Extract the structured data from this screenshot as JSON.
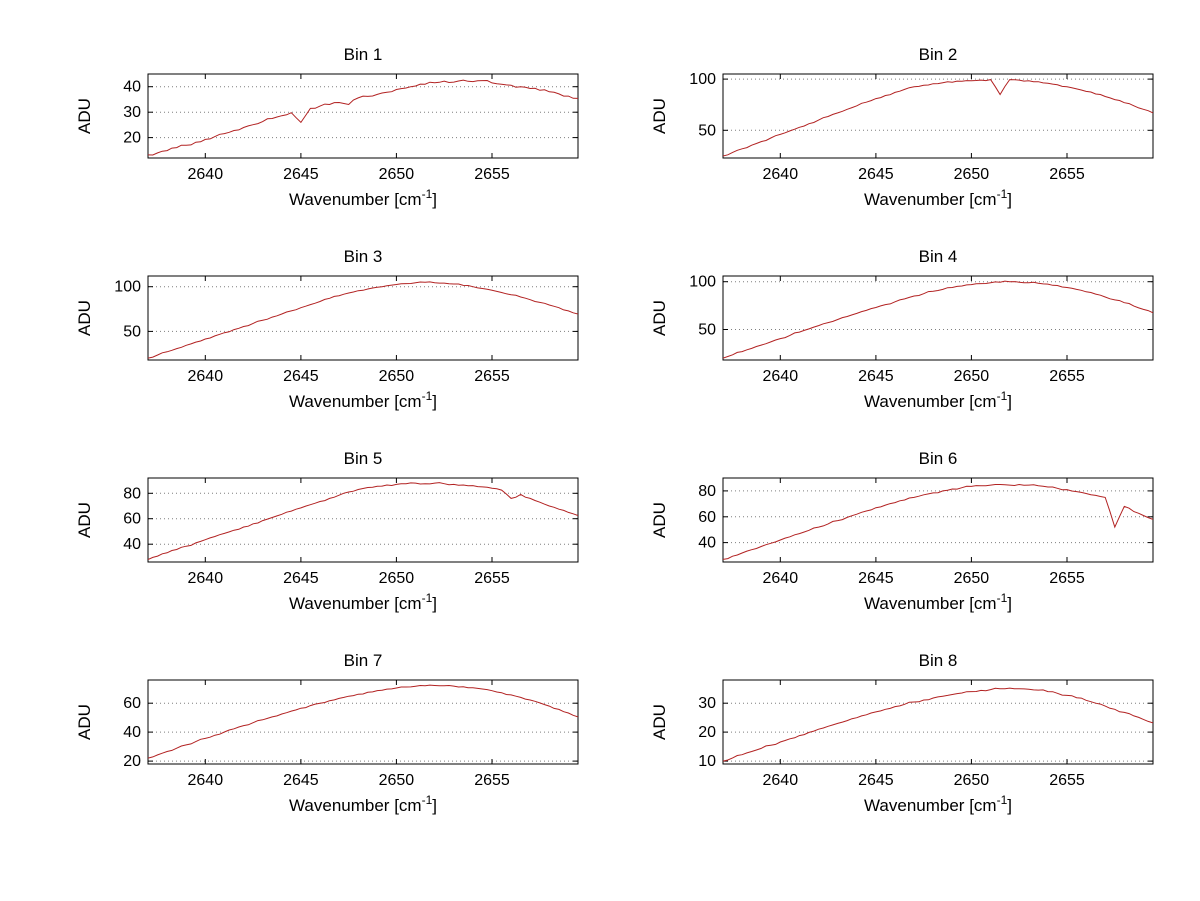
{
  "figure": {
    "background": "#ffffff",
    "line_color": "#b22222",
    "grid_color": "#7f7f7f",
    "axis_color": "#000000",
    "ylabel": "ADU",
    "xlabel_base": "Wavenumber [cm",
    "xlabel_sup": "-1",
    "xlabel_close": "]"
  },
  "chart_data": [
    {
      "type": "line",
      "title": "Bin 1",
      "ylabel": "ADU",
      "xlabel": "Wavenumber [cm^-1]",
      "xlim": [
        2637,
        2659.5
      ],
      "xticks": [
        2640,
        2645,
        2650,
        2655
      ],
      "ylim": [
        12,
        45
      ],
      "yticks": [
        20,
        30,
        40
      ],
      "x_start": 2637,
      "x_step": 0.5,
      "noise": 0.5,
      "values": [
        13.2,
        14.0,
        14.9,
        16.1,
        17.0,
        18.2,
        19.3,
        20.4,
        21.6,
        22.8,
        24.0,
        25.1,
        26.3,
        27.5,
        28.6,
        29.8,
        26.0,
        31.5,
        32.4,
        33.0,
        33.8,
        33.0,
        35.6,
        36.2,
        37.0,
        37.8,
        38.9,
        39.5,
        40.3,
        41.0,
        41.6,
        42.2,
        41.8,
        42.6,
        42.0,
        42.4,
        41.5,
        41.0,
        40.6,
        40.0,
        39.3,
        38.6,
        38.0,
        37.2,
        36.3,
        35.4
      ]
    },
    {
      "type": "line",
      "title": "Bin 2",
      "ylabel": "ADU",
      "xlabel": "Wavenumber [cm^-1]",
      "xlim": [
        2637,
        2659.5
      ],
      "xticks": [
        2640,
        2645,
        2650,
        2655
      ],
      "ylim": [
        23,
        105
      ],
      "yticks": [
        50,
        100
      ],
      "x_start": 2637,
      "x_step": 0.5,
      "noise": 0.8,
      "values": [
        25,
        28.5,
        32,
        35.5,
        39,
        42.5,
        46,
        49.5,
        53,
        56.5,
        60,
        63.5,
        67,
        70.5,
        74,
        77.5,
        81,
        84,
        87,
        90,
        92.5,
        94,
        95.5,
        96.5,
        97,
        98,
        98.5,
        99,
        99.5,
        85,
        99.5,
        99,
        98.5,
        97.5,
        96,
        94.5,
        92.5,
        90.5,
        88,
        85.5,
        83,
        80,
        77,
        74,
        70.5,
        67
      ]
    },
    {
      "type": "line",
      "title": "Bin 3",
      "ylabel": "ADU",
      "xlabel": "Wavenumber [cm^-1]",
      "xlim": [
        2637,
        2659.5
      ],
      "xticks": [
        2640,
        2645,
        2650,
        2655
      ],
      "ylim": [
        18,
        112
      ],
      "yticks": [
        50,
        100
      ],
      "x_start": 2637,
      "x_step": 0.5,
      "noise": 0.8,
      "values": [
        20,
        23.6,
        27.2,
        30.8,
        34.4,
        38,
        41.5,
        45,
        48.5,
        52,
        55.5,
        59,
        62.5,
        66,
        69.5,
        73,
        76.5,
        80,
        83.5,
        87,
        90,
        93,
        95.5,
        97.5,
        99.5,
        101,
        102.5,
        103.5,
        104.5,
        105,
        104.5,
        104,
        103,
        101.5,
        100,
        98,
        96,
        93.5,
        91,
        88.5,
        85.5,
        82.5,
        79.5,
        76.5,
        73,
        69.5
      ]
    },
    {
      "type": "line",
      "title": "Bin 4",
      "ylabel": "ADU",
      "xlabel": "Wavenumber [cm^-1]",
      "xlim": [
        2637,
        2659.5
      ],
      "xticks": [
        2640,
        2645,
        2650,
        2655
      ],
      "ylim": [
        18,
        106
      ],
      "yticks": [
        50,
        100
      ],
      "x_start": 2637,
      "x_step": 0.5,
      "noise": 0.9,
      "values": [
        20,
        23.4,
        26.8,
        30.2,
        33.6,
        37,
        40.4,
        43.8,
        47.2,
        50.6,
        54,
        57.2,
        60.4,
        63.6,
        66.8,
        70,
        73,
        76,
        79,
        82,
        85,
        87.5,
        90,
        92,
        94,
        95.5,
        97,
        98,
        99,
        99.5,
        100,
        99.5,
        99,
        98.5,
        97.5,
        96,
        94,
        92,
        89.5,
        87,
        84,
        81,
        78,
        74.5,
        71,
        67.5
      ]
    },
    {
      "type": "line",
      "title": "Bin 5",
      "ylabel": "ADU",
      "xlabel": "Wavenumber [cm^-1]",
      "xlim": [
        2637,
        2659.5
      ],
      "xticks": [
        2640,
        2645,
        2650,
        2655
      ],
      "ylim": [
        26,
        92
      ],
      "yticks": [
        40,
        60,
        80
      ],
      "x_start": 2637,
      "x_step": 0.5,
      "noise": 0.7,
      "values": [
        28,
        30.6,
        33.2,
        35.8,
        38.4,
        41,
        43.5,
        46,
        48.5,
        51,
        53.5,
        56,
        58.5,
        61,
        63.5,
        66,
        68.5,
        71,
        73.5,
        76,
        78.5,
        81,
        83,
        84.5,
        85.5,
        86.5,
        87,
        87.5,
        88,
        87.5,
        88,
        87.5,
        87,
        86.5,
        86,
        85,
        84,
        82.5,
        76,
        79,
        76,
        73,
        70,
        67.5,
        65,
        62.5
      ]
    },
    {
      "type": "line",
      "title": "Bin 6",
      "ylabel": "ADU",
      "xlabel": "Wavenumber [cm^-1]",
      "xlim": [
        2637,
        2659.5
      ],
      "xticks": [
        2640,
        2645,
        2650,
        2655
      ],
      "ylim": [
        25,
        90
      ],
      "yticks": [
        40,
        60,
        80
      ],
      "x_start": 2637,
      "x_step": 0.5,
      "noise": 0.7,
      "values": [
        27,
        29.5,
        32,
        34.5,
        37,
        39.5,
        42,
        44.5,
        47,
        49.5,
        52,
        54.5,
        57,
        59.5,
        62,
        64.5,
        67,
        69,
        71,
        73,
        75,
        77,
        78.5,
        80,
        81.5,
        82.5,
        83.5,
        84,
        84.5,
        85,
        84.5,
        85,
        84.5,
        84,
        83,
        82,
        81,
        79.5,
        78,
        76.5,
        75,
        52,
        68,
        64,
        61,
        58
      ]
    },
    {
      "type": "line",
      "title": "Bin 7",
      "ylabel": "ADU",
      "xlabel": "Wavenumber [cm^-1]",
      "xlim": [
        2637,
        2659.5
      ],
      "xticks": [
        2640,
        2645,
        2650,
        2655
      ],
      "ylim": [
        18,
        76
      ],
      "yticks": [
        20,
        40,
        60
      ],
      "x_start": 2637,
      "x_step": 0.5,
      "noise": 0.5,
      "values": [
        22,
        24.3,
        26.6,
        28.9,
        31.2,
        33.5,
        35.7,
        37.9,
        40.1,
        42.3,
        44.5,
        46.5,
        48.5,
        50.5,
        52.5,
        54.5,
        56.5,
        58.3,
        60,
        61.7,
        63.3,
        64.8,
        66.2,
        67.5,
        68.7,
        69.7,
        70.5,
        71.2,
        71.7,
        72,
        72.2,
        72,
        71.8,
        71.3,
        70.6,
        69.8,
        68.6,
        67.2,
        65.7,
        64,
        62.2,
        60.2,
        58,
        55.7,
        53.2,
        50.5
      ]
    },
    {
      "type": "line",
      "title": "Bin 8",
      "ylabel": "ADU",
      "xlabel": "Wavenumber [cm^-1]",
      "xlim": [
        2637,
        2659.5
      ],
      "xticks": [
        2640,
        2645,
        2650,
        2655
      ],
      "ylim": [
        9,
        38
      ],
      "yticks": [
        10,
        20,
        30
      ],
      "x_start": 2637,
      "x_step": 0.5,
      "noise": 0.35,
      "values": [
        10,
        11.1,
        12.2,
        13.3,
        14.4,
        15.5,
        16.6,
        17.7,
        18.8,
        19.9,
        21,
        22,
        23,
        24,
        25,
        26,
        27,
        27.9,
        28.8,
        29.6,
        30.4,
        31.1,
        31.8,
        32.4,
        33,
        33.5,
        34,
        34.4,
        34.7,
        35,
        35.2,
        35,
        34.8,
        34.5,
        34,
        33.4,
        32.7,
        31.9,
        31,
        30,
        29,
        27.9,
        26.8,
        25.6,
        24.4,
        23.2
      ]
    }
  ]
}
